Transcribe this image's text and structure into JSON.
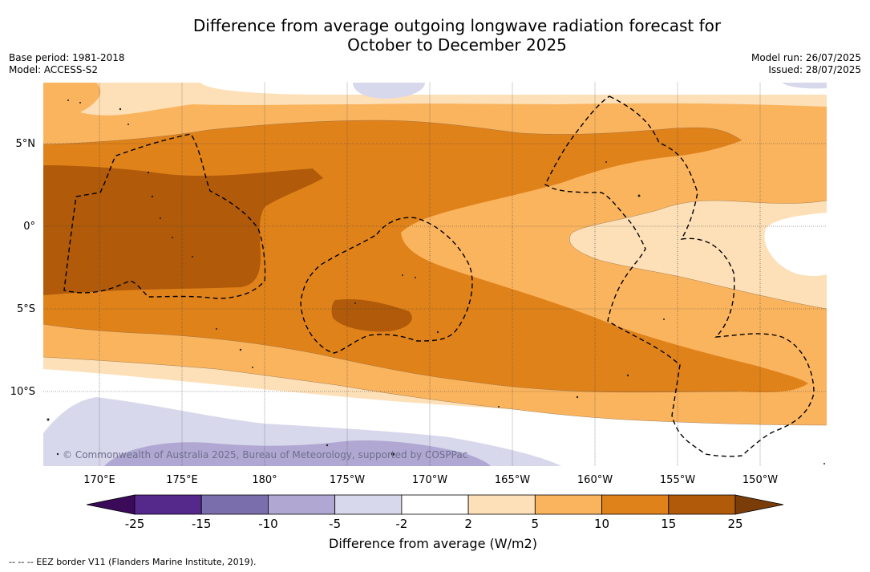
{
  "title_line1": "Difference from average outgoing longwave radiation forecast for",
  "title_line2": "October to December 2025",
  "meta_left": {
    "base_period": "Base period: 1981-2018",
    "model": "Model: ACCESS-S2"
  },
  "meta_right": {
    "model_run": "Model run: 26/07/2025",
    "issued": "Issued: 28/07/2025"
  },
  "map": {
    "lat_labels": [
      "5°N",
      "0°",
      "5°S",
      "10°S"
    ],
    "lon_labels": [
      "170°E",
      "175°E",
      "180°",
      "175°W",
      "170°W",
      "165°W",
      "160°W",
      "155°W",
      "150°W"
    ],
    "copyright": "© Commonwealth of Australia 2025, Bureau of Meteorology, supported by COSPPac",
    "colors": {
      "c_p10_5": "#b0a8d2",
      "c_p5_2": "#d8d8ec",
      "c_2_5": "#fde0b8",
      "c_5_10": "#fbb45e",
      "c_10_15": "#e0821a",
      "c_15_25": "#b05a0a"
    }
  },
  "colorbar": {
    "ticks": [
      "-25",
      "-15",
      "-10",
      "-5",
      "-2",
      "2",
      "5",
      "10",
      "15",
      "25"
    ],
    "colors": [
      "#55288c",
      "#7b6eac",
      "#b0a8d2",
      "#d8d8ec",
      "#ffffff",
      "#fde0b8",
      "#fbb45e",
      "#e0821a",
      "#b05a0a"
    ],
    "under_color": "#3b0b5a",
    "over_color": "#7a3c08",
    "label": "Difference from average (W/m2)"
  },
  "footer": "--  --  -- EEZ border V11 (Flanders Marine Institute, 2019)."
}
